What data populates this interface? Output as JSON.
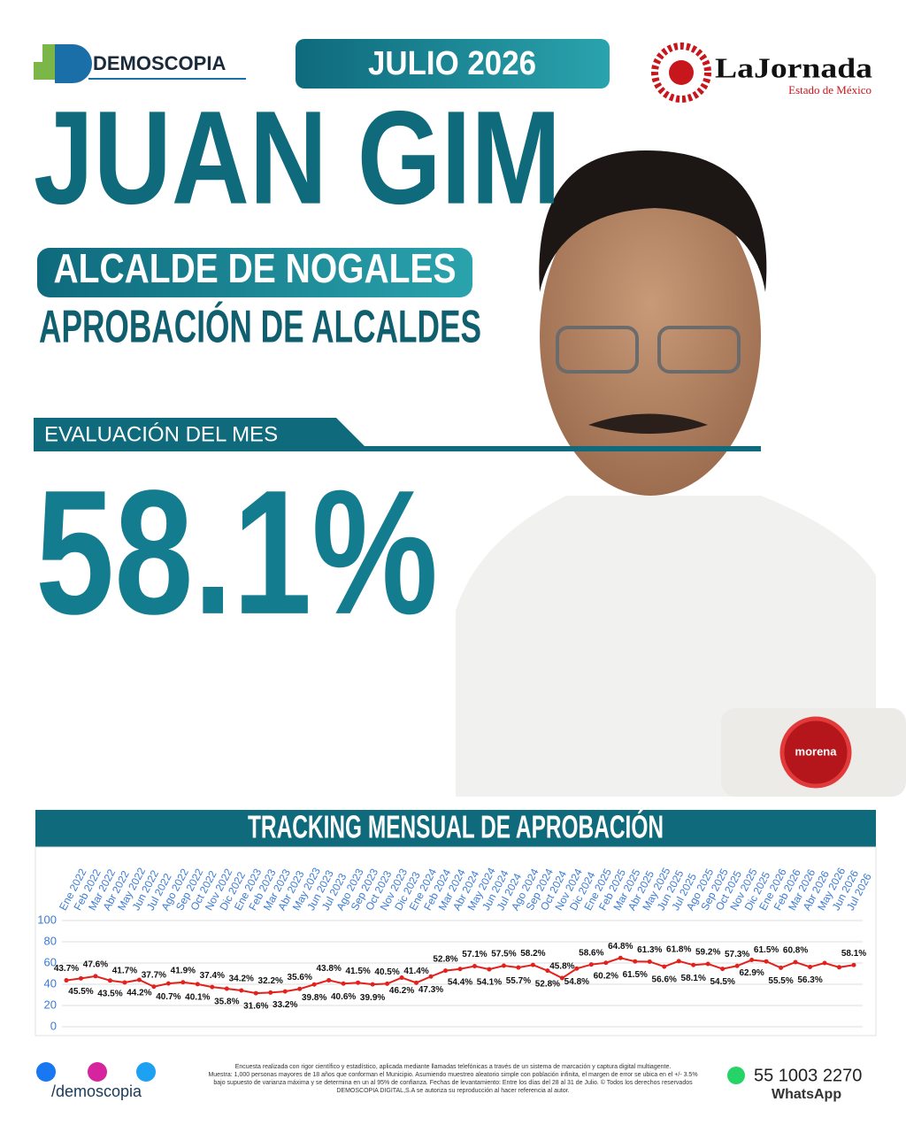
{
  "header": {
    "brand": "DEMOSCOPIA",
    "date": "JULIO 2026",
    "partner": "LaJornada",
    "partner_sub": "Estado de México"
  },
  "hero": {
    "name": "JUAN GIM",
    "role": "ALCALDE DE NOGALES",
    "survey": "APROBACIÓN DE ALCALDES",
    "eval_label": "EVALUACIÓN DEL MES",
    "eval_value": "58.1%",
    "party": "morena"
  },
  "chart_data": {
    "type": "line",
    "title": "TRACKING MENSUAL DE APROBACIÓN",
    "categories": [
      "Ene 2022",
      "Feb 2022",
      "Mar 2022",
      "Abr 2022",
      "May 2022",
      "Jun 2022",
      "Jul 2022",
      "Ago 2022",
      "Sep 2022",
      "Oct 2022",
      "Nov 2022",
      "Dic 2022",
      "Ene 2023",
      "Feb 2023",
      "Mar 2023",
      "Abr 2023",
      "May 2023",
      "Jun 2023",
      "Jul 2023",
      "Ago 2023",
      "Sep 2023",
      "Oct 2023",
      "Nov 2023",
      "Dic 2023",
      "Ene 2024",
      "Feb 2024",
      "Mar 2024",
      "Abr 2024",
      "May 2024",
      "Jun 2024",
      "Jul 2024",
      "Ago 2024",
      "Sep 2024",
      "Oct 2024",
      "Nov 2024",
      "Dic 2024",
      "Ene 2025",
      "Feb 2025",
      "Mar 2025",
      "Abr 2025",
      "May 2025",
      "Jun 2025",
      "Jul 2025",
      "Ago 2025",
      "Sep 2025",
      "Oct 2025",
      "Nov 2025",
      "Dic 2025",
      "Ene 2026",
      "Feb 2026",
      "Mar 2026",
      "Abr 2026",
      "May 2026",
      "Jun 2026",
      "Jul 2026"
    ],
    "values": [
      43.7,
      45.5,
      47.6,
      43.5,
      41.7,
      44.2,
      37.7,
      40.7,
      41.9,
      40.1,
      37.4,
      35.8,
      34.2,
      31.6,
      32.2,
      33.2,
      35.6,
      39.8,
      43.8,
      40.6,
      41.5,
      39.9,
      40.5,
      46.2,
      41.4,
      47.3,
      52.8,
      54.4,
      57.1,
      54.1,
      57.5,
      55.7,
      58.2,
      52.8,
      45.8,
      54.8,
      58.6,
      60.2,
      64.8,
      61.5,
      61.3,
      56.6,
      61.8,
      58.1,
      59.2,
      54.5,
      57.3,
      62.9,
      61.5,
      55.5,
      60.8,
      56.3,
      60.0,
      56.0,
      58.1
    ],
    "value_labels": [
      "43.7%",
      "45.5%",
      "47.6%",
      "43.5%",
      "41.7%",
      "44.2%",
      "37.7%",
      "40.7%",
      "41.9%",
      "40.1%",
      "37.4%",
      "35.8%",
      "34.2%",
      "31.6%",
      "32.2%",
      "33.2%",
      "35.6%",
      "39.8%",
      "43.8%",
      "40.6%",
      "41.5%",
      "39.9%",
      "40.5%",
      "46.2%",
      "41.4%",
      "47.3%",
      "52.8%",
      "54.4%",
      "57.1%",
      "54.1%",
      "57.5%",
      "55.7%",
      "58.2%",
      "52.8%",
      "45.8%",
      "54.8%",
      "58.6%",
      "60.2%",
      "64.8%",
      "61.5%",
      "61.3%",
      "56.6%",
      "61.8%",
      "58.1%",
      "59.2%",
      "54.5%",
      "57.3%",
      "62.9%",
      "61.5%",
      "55.5%",
      "60.8%",
      "56.3%",
      null,
      null,
      "58.1%"
    ],
    "color": "#e3211c",
    "ylim": [
      0,
      100
    ],
    "yticks": [
      0,
      20,
      40,
      60,
      80,
      100
    ],
    "grid": true
  },
  "footer": {
    "social": "/demoscopia",
    "note": [
      "Encuesta realizada con rigor científico y estadístico, aplicada mediante llamadas telefónicas a través de un sistema de marcación y captura digital multiagente.",
      "Muestra: 1,000 personas mayores de 18 años que conforman el Municipio. Asumiendo muestreo aleatorio simple con población infinita, el margen de error se ubica en el +/- 3.5%",
      "bajo supuesto de varianza máxima y se determina en un al 95% de confianza. Fechas de levantamiento: Entre los días del 28 al 31 de Julio. © Todos los derechos reservados",
      "DEMOSCOPIA DIGITAL,S.A se autoriza su reproducción al hacer referencia al autor."
    ],
    "phone": "55 1003 2270",
    "phone_label": "WhatsApp"
  }
}
